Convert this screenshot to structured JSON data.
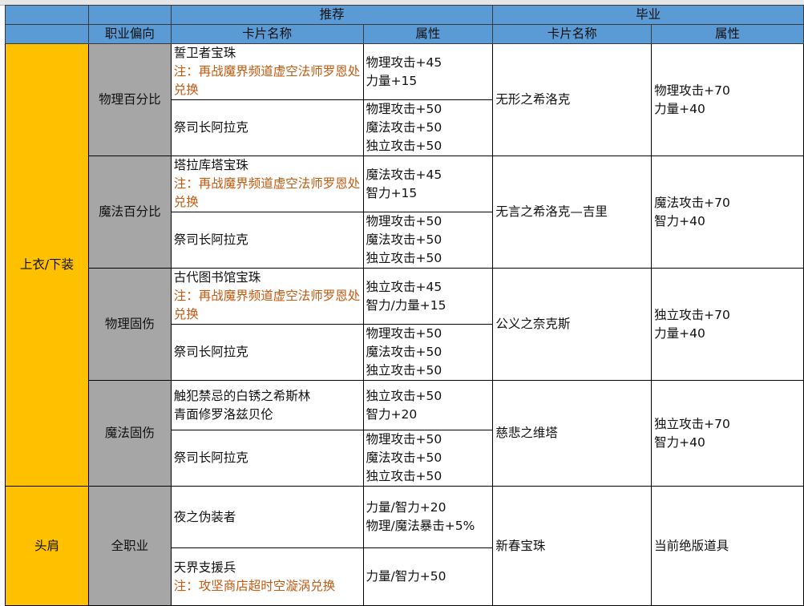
{
  "header": {
    "group_recommend": "推荐",
    "group_graduate": "毕业",
    "col_class_bias": "职业偏向",
    "col_card_name": "卡片名称",
    "col_attribute": "属性",
    "col_grad_card_name": "卡片名称",
    "col_grad_attribute": "属性"
  },
  "colors": {
    "header": "#5b9bd5",
    "category": "#ffc000",
    "subcategory": "#a6a6a6",
    "note": "#c55a11"
  },
  "groups": [
    {
      "category": "上衣/下装",
      "subgroups": [
        {
          "bias": "物理百分比",
          "grad_card": "无形之希洛克",
          "grad_attrs": [
            "物理攻击+70",
            "力量+40"
          ],
          "recs": [
            {
              "card": "誓卫者宝珠",
              "note": "注：再战魔界频道虚空法师罗恩处兑换",
              "attrs": [
                "物理攻击+45",
                "力量+15"
              ]
            },
            {
              "card": "祭司长阿拉克",
              "note": "",
              "attrs": [
                "物理攻击+50",
                "魔法攻击+50",
                "独立攻击+50"
              ]
            }
          ]
        },
        {
          "bias": "魔法百分比",
          "grad_card": "无言之希洛克—吉里",
          "grad_attrs": [
            "魔法攻击+70",
            "智力+40"
          ],
          "recs": [
            {
              "card": "塔拉库塔宝珠",
              "note": "注：再战魔界频道虚空法师罗恩处兑换",
              "attrs": [
                "魔法攻击+45",
                "智力+15"
              ]
            },
            {
              "card": "祭司长阿拉克",
              "note": "",
              "attrs": [
                "物理攻击+50",
                "魔法攻击+50",
                "独立攻击+50"
              ]
            }
          ]
        },
        {
          "bias": "物理固伤",
          "grad_card": "公义之奈克斯",
          "grad_attrs": [
            "独立攻击+70",
            "力量+40"
          ],
          "recs": [
            {
              "card": "古代图书馆宝珠",
              "note": "注：再战魔界频道虚空法师罗恩处兑换",
              "attrs": [
                "独立攻击+45",
                "智力/力量+15"
              ]
            },
            {
              "card": "祭司长阿拉克",
              "note": "",
              "attrs": [
                "物理攻击+50",
                "魔法攻击+50",
                "独立攻击+50"
              ]
            }
          ]
        },
        {
          "bias": "魔法固伤",
          "grad_card": "慈悲之维塔",
          "grad_attrs": [
            "独立攻击+70",
            "智力+40"
          ],
          "recs": [
            {
              "card": "触犯禁忌的白锈之希斯林",
              "card2": "青面修罗洛兹贝伦",
              "note": "",
              "attrs": [
                "独立攻击+50",
                "智力+20"
              ]
            },
            {
              "card": "祭司长阿拉克",
              "note": "",
              "attrs": [
                "物理攻击+50",
                "魔法攻击+50",
                "独立攻击+50"
              ]
            }
          ]
        }
      ]
    },
    {
      "category": "头肩",
      "subgroups": [
        {
          "bias": "全职业",
          "grad_card": "新春宝珠",
          "grad_attrs": [
            "当前绝版道具"
          ],
          "recs": [
            {
              "card": "夜之伪装者",
              "note": "",
              "attrs": [
                "力量/智力+20",
                "物理/魔法暴击+5%"
              ]
            },
            {
              "card": "天界支援兵",
              "note": "注：攻坚商店超时空漩涡兑换",
              "attrs": [
                "力量/智力+50"
              ]
            }
          ]
        }
      ]
    }
  ]
}
